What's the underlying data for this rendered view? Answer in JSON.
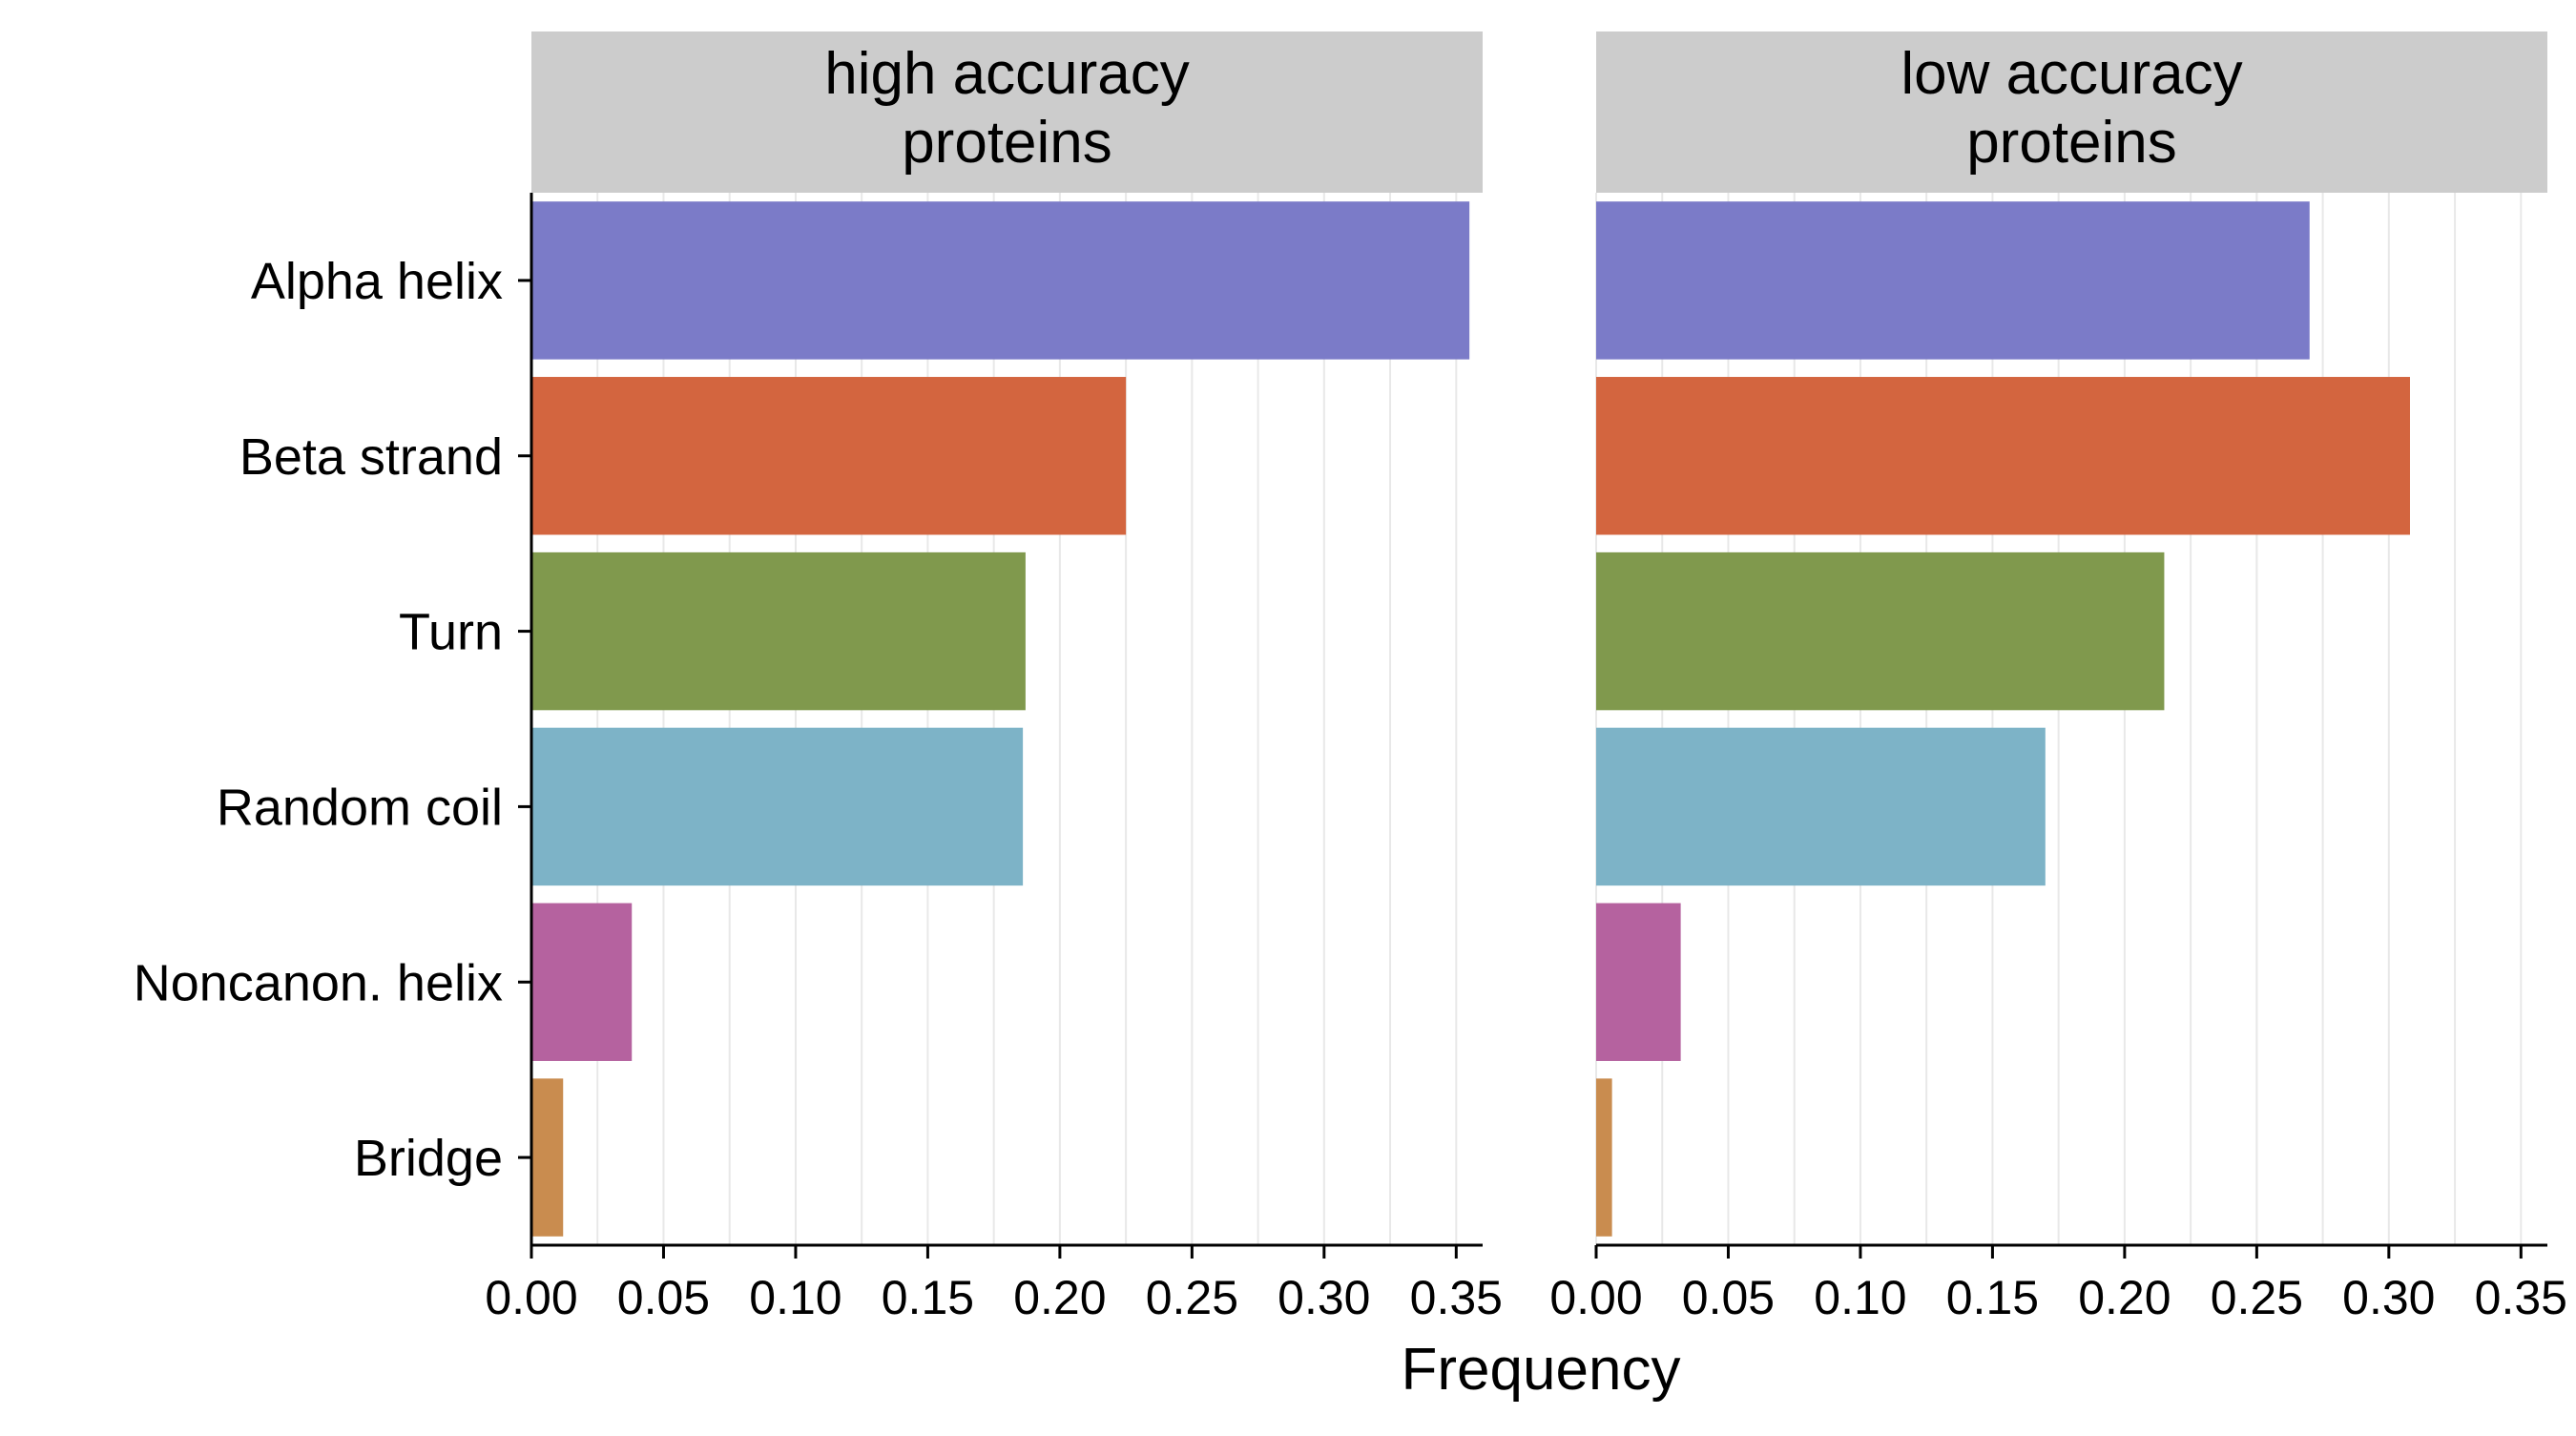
{
  "chart_data": {
    "type": "bar",
    "orientation": "horizontal",
    "xlabel": "Frequency",
    "xlim": [
      0,
      0.36
    ],
    "x_ticks": [
      0.0,
      0.05,
      0.1,
      0.15,
      0.2,
      0.25,
      0.3,
      0.35
    ],
    "x_tick_labels": [
      "0.00",
      "0.05",
      "0.10",
      "0.15",
      "0.20",
      "0.25",
      "0.30",
      "0.35"
    ],
    "grid": "vertical",
    "legend": "none",
    "categories": [
      "Alpha helix",
      "Beta strand",
      "Turn",
      "Random coil",
      "Noncanon. helix",
      "Bridge"
    ],
    "colors": [
      "#7b7bc8",
      "#d3653f",
      "#80994d",
      "#7db3c7",
      "#b5629f",
      "#c98c4f"
    ],
    "panels": [
      {
        "title_lines": [
          "high accuracy",
          "proteins"
        ],
        "values": [
          0.355,
          0.225,
          0.187,
          0.186,
          0.038,
          0.012
        ]
      },
      {
        "title_lines": [
          "low accuracy",
          "proteins"
        ],
        "values": [
          0.27,
          0.308,
          0.215,
          0.17,
          0.032,
          0.006
        ]
      }
    ]
  }
}
